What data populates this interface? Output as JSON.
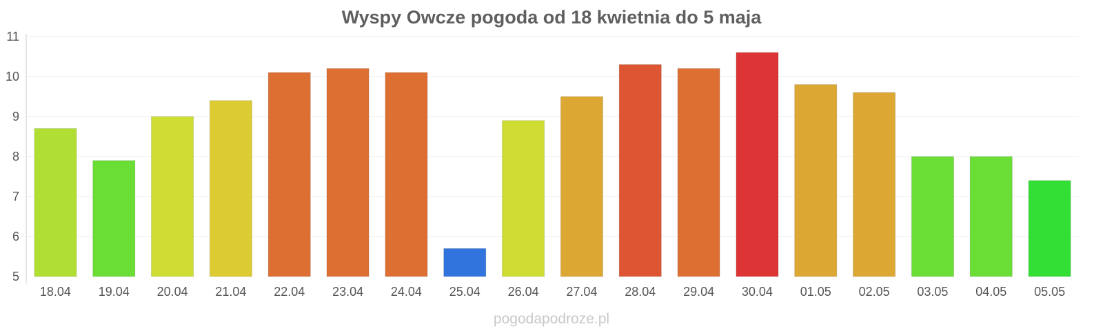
{
  "chart_data": {
    "type": "bar",
    "title": "Wyspy Owcze pogoda od 18 kwietnia do 5 maja",
    "xlabel": "",
    "ylabel": "",
    "ylim": [
      5,
      11
    ],
    "yticks": [
      5,
      6,
      7,
      8,
      9,
      10,
      11
    ],
    "grid": true,
    "categories": [
      "18.04",
      "19.04",
      "20.04",
      "21.04",
      "22.04",
      "23.04",
      "24.04",
      "25.04",
      "26.04",
      "27.04",
      "28.04",
      "29.04",
      "30.04",
      "01.05",
      "02.05",
      "03.05",
      "04.05",
      "05.05"
    ],
    "values": [
      8.7,
      7.9,
      9.0,
      9.4,
      10.1,
      10.2,
      10.1,
      5.7,
      8.9,
      9.5,
      10.3,
      10.2,
      10.6,
      9.8,
      9.6,
      8.0,
      8.0,
      7.4
    ],
    "colors": [
      "#b0de33",
      "#6ade35",
      "#cfdd33",
      "#dccb33",
      "#dd6f33",
      "#dd6f33",
      "#dd6f33",
      "#3274dd",
      "#cfdd33",
      "#dca833",
      "#dd5533",
      "#dd6f33",
      "#dd3535",
      "#dca833",
      "#dca833",
      "#6ade35",
      "#6ade35",
      "#33de35"
    ]
  },
  "watermark": "pogodapodroze.pl"
}
